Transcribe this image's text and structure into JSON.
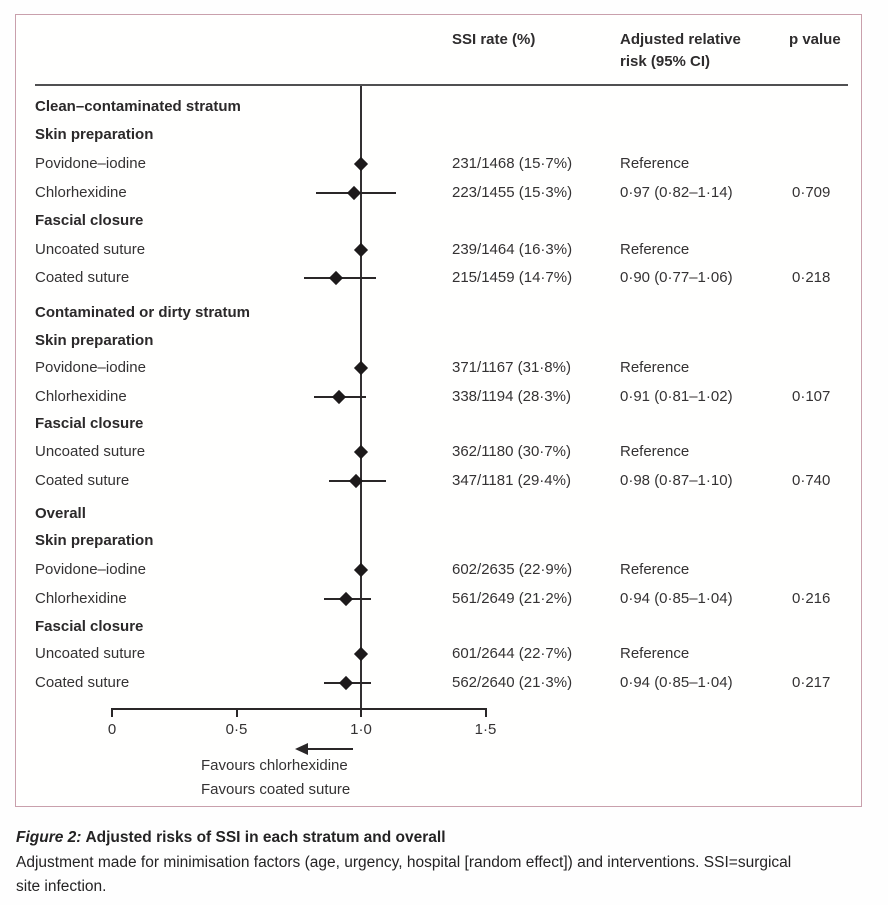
{
  "figure": {
    "columns": {
      "ssi": "SSI rate (%)",
      "rr_line1": "Adjusted relative",
      "rr_line2": "risk (95% CI)",
      "p": "p value"
    }
  },
  "chart_data": {
    "type": "forest",
    "x_axis": {
      "min": 0,
      "max": 1.5,
      "reference_line": 1.0,
      "ticks": [
        {
          "value": 0,
          "label": "0"
        },
        {
          "value": 0.5,
          "label": "0·5"
        },
        {
          "value": 1.0,
          "label": "1·0"
        },
        {
          "value": 1.5,
          "label": "1·5"
        }
      ]
    },
    "rows": [
      {
        "kind": "stratum",
        "label": "Clean–contaminated stratum"
      },
      {
        "kind": "group",
        "label": "Skin preparation"
      },
      {
        "kind": "data",
        "label": "Povidone–iodine",
        "ssi": "231/1468 (15·7%)",
        "rr_text": "Reference",
        "p": "",
        "est": 1.0,
        "lo": null,
        "hi": null
      },
      {
        "kind": "data",
        "label": "Chlorhexidine",
        "ssi": "223/1455 (15·3%)",
        "rr_text": "0·97 (0·82–1·14)",
        "p": "0·709",
        "est": 0.97,
        "lo": 0.82,
        "hi": 1.14
      },
      {
        "kind": "group",
        "label": "Fascial closure"
      },
      {
        "kind": "data",
        "label": "Uncoated suture",
        "ssi": "239/1464 (16·3%)",
        "rr_text": "Reference",
        "p": "",
        "est": 1.0,
        "lo": null,
        "hi": null
      },
      {
        "kind": "data",
        "label": "Coated suture",
        "ssi": "215/1459 (14·7%)",
        "rr_text": "0·90 (0·77–1·06)",
        "p": "0·218",
        "est": 0.9,
        "lo": 0.77,
        "hi": 1.06
      },
      {
        "kind": "stratum",
        "label": "Contaminated or dirty stratum"
      },
      {
        "kind": "group",
        "label": "Skin preparation"
      },
      {
        "kind": "data",
        "label": "Povidone–iodine",
        "ssi": "371/1167 (31·8%)",
        "rr_text": "Reference",
        "p": "",
        "est": 1.0,
        "lo": null,
        "hi": null
      },
      {
        "kind": "data",
        "label": "Chlorhexidine",
        "ssi": "338/1194 (28·3%)",
        "rr_text": "0·91 (0·81–1·02)",
        "p": "0·107",
        "est": 0.91,
        "lo": 0.81,
        "hi": 1.02
      },
      {
        "kind": "group",
        "label": "Fascial closure"
      },
      {
        "kind": "data",
        "label": "Uncoated suture",
        "ssi": "362/1180 (30·7%)",
        "rr_text": "Reference",
        "p": "",
        "est": 1.0,
        "lo": null,
        "hi": null
      },
      {
        "kind": "data",
        "label": "Coated suture",
        "ssi": "347/1181 (29·4%)",
        "rr_text": "0·98 (0·87–1·10)",
        "p": "0·740",
        "est": 0.98,
        "lo": 0.87,
        "hi": 1.1
      },
      {
        "kind": "stratum",
        "label": "Overall"
      },
      {
        "kind": "group",
        "label": "Skin preparation"
      },
      {
        "kind": "data",
        "label": "Povidone–iodine",
        "ssi": "602/2635 (22·9%)",
        "rr_text": "Reference",
        "p": "",
        "est": 1.0,
        "lo": null,
        "hi": null
      },
      {
        "kind": "data",
        "label": "Chlorhexidine",
        "ssi": "561/2649 (21·2%)",
        "rr_text": "0·94 (0·85–1·04)",
        "p": "0·216",
        "est": 0.94,
        "lo": 0.85,
        "hi": 1.04
      },
      {
        "kind": "group",
        "label": "Fascial closure"
      },
      {
        "kind": "data",
        "label": "Uncoated suture",
        "ssi": "601/2644 (22·7%)",
        "rr_text": "Reference",
        "p": "",
        "est": 1.0,
        "lo": null,
        "hi": null
      },
      {
        "kind": "data",
        "label": "Coated suture",
        "ssi": "562/2640 (21·3%)",
        "rr_text": "0·94 (0·85–1·04)",
        "p": "0·217",
        "est": 0.94,
        "lo": 0.85,
        "hi": 1.04
      }
    ],
    "arrow": {
      "direction": "left",
      "labels": [
        "Favours chlorhexidine",
        "Favours coated suture"
      ]
    }
  },
  "caption": {
    "label": "Figure 2:",
    "title": "Adjusted risks of SSI in each stratum and overall",
    "body_line1": "Adjustment made for minimisation factors (age, urgency, hospital [random effect]) and interventions. SSI=surgical",
    "body_line2": "site infection."
  },
  "colors": {
    "panel_border": "#c9a0ac",
    "ink": "#2f2d2e",
    "plot_marks": "#1d1a1b"
  }
}
